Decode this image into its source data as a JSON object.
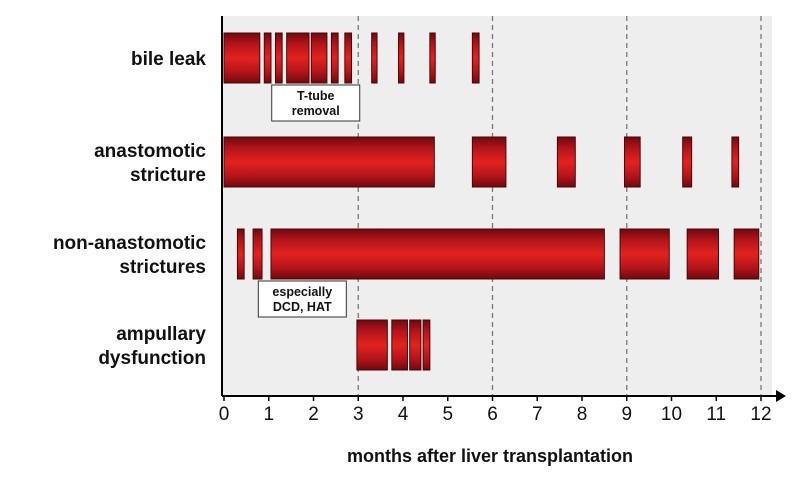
{
  "chart_data": {
    "type": "bar",
    "title": "",
    "xlabel": "months after liver transplantation",
    "ylabel": "",
    "xlim": [
      0,
      12.2
    ],
    "xticks": [
      0,
      1,
      2,
      3,
      4,
      5,
      6,
      7,
      8,
      9,
      10,
      11,
      12
    ],
    "reference_lines": [
      3,
      6,
      9,
      12
    ],
    "background": "#eeeeee",
    "bar_color": "#c8161d",
    "categories": [
      {
        "label_lines": [
          "bile leak"
        ]
      },
      {
        "label_lines": [
          "anastomotic",
          "stricture"
        ]
      },
      {
        "label_lines": [
          "non-anastomotic",
          "strictures"
        ]
      },
      {
        "label_lines": [
          "ampullary",
          "dysfunction"
        ]
      }
    ],
    "series": [
      {
        "category": "bile leak",
        "segments": [
          [
            0,
            0.8
          ],
          [
            0.9,
            1.05
          ],
          [
            1.15,
            1.3
          ],
          [
            1.4,
            1.9
          ],
          [
            1.95,
            2.3
          ],
          [
            2.4,
            2.55
          ],
          [
            2.7,
            2.85
          ],
          [
            3.3,
            3.42
          ],
          [
            3.9,
            4.02
          ],
          [
            4.6,
            4.72
          ],
          [
            5.55,
            5.7
          ]
        ]
      },
      {
        "category": "anastomotic stricture",
        "segments": [
          [
            0,
            4.7
          ],
          [
            5.55,
            6.3
          ],
          [
            7.45,
            7.85
          ],
          [
            8.95,
            9.3
          ],
          [
            10.25,
            10.45
          ],
          [
            11.35,
            11.5
          ]
        ]
      },
      {
        "category": "non-anastomotic strictures",
        "segments": [
          [
            0.3,
            0.45
          ],
          [
            0.65,
            0.85
          ],
          [
            1.05,
            8.5
          ],
          [
            8.85,
            9.95
          ],
          [
            10.35,
            11.05
          ],
          [
            11.4,
            11.95
          ]
        ]
      },
      {
        "category": "ampullary dysfunction",
        "segments": [
          [
            2.97,
            3.65
          ],
          [
            3.75,
            4.1
          ],
          [
            4.15,
            4.4
          ],
          [
            4.45,
            4.6
          ]
        ]
      }
    ],
    "annotations": [
      {
        "category_index": 0,
        "x": 2.05,
        "lines": [
          "T-tube",
          "removal"
        ]
      },
      {
        "category_index": 2,
        "x": 1.75,
        "lines": [
          "especially",
          "DCD, HAT"
        ]
      }
    ]
  }
}
